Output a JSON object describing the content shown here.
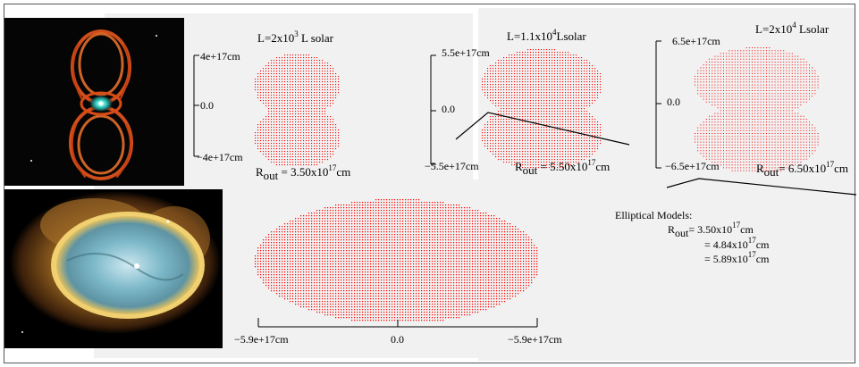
{
  "panels": [
    {
      "id": "model1",
      "title_prefix": "L=2x10",
      "title_exp": "3",
      "title_suffix": " L solar",
      "y_top": "4e+17cm",
      "y_mid": "0.0",
      "y_bot": "−4e+17cm",
      "rout_prefix": "R",
      "rout_sub": "out",
      "rout_value": " = 3.50x10",
      "rout_exp": "17",
      "rout_unit": "cm"
    },
    {
      "id": "model2",
      "title_prefix": "L=1.1x10",
      "title_exp": "4",
      "title_suffix": "Lsolar",
      "y_top": "5.5e+17cm",
      "y_mid": "0.0",
      "y_bot": "−5.5e+17cm",
      "rout_prefix": "R",
      "rout_sub": "out",
      "rout_value": " = 5.50x10",
      "rout_exp": "17",
      "rout_unit": "cm"
    },
    {
      "id": "model3",
      "title_prefix": "L=2x10",
      "title_exp": "4",
      "title_suffix": " Lsolar",
      "y_top": "6.5e+17cm",
      "y_mid": "0.0",
      "y_bot": "−6.5e+17cm",
      "rout_prefix": "R",
      "rout_sub": "out",
      "rout_value": "= 6.50x10",
      "rout_exp": "17",
      "rout_unit": "cm"
    }
  ],
  "elliptical": {
    "x_left": "−5.9e+17cm",
    "x_mid": "0.0",
    "x_right": "−5.9e+17cm",
    "legend_title": "Elliptical Models:",
    "rout_prefix": "R",
    "rout_sub": "out",
    "values": [
      {
        "prefix": "= 3.50x10",
        "exp": "17",
        "unit": "cm"
      },
      {
        "prefix": "= 4.84x10",
        "exp": "17",
        "unit": "cm"
      },
      {
        "prefix": "= 5.89x10",
        "exp": "17",
        "unit": "cm"
      }
    ]
  },
  "colors": {
    "model_points": "#ff0000",
    "axis": "#000000",
    "panel_bg": "#f1f1f1"
  }
}
